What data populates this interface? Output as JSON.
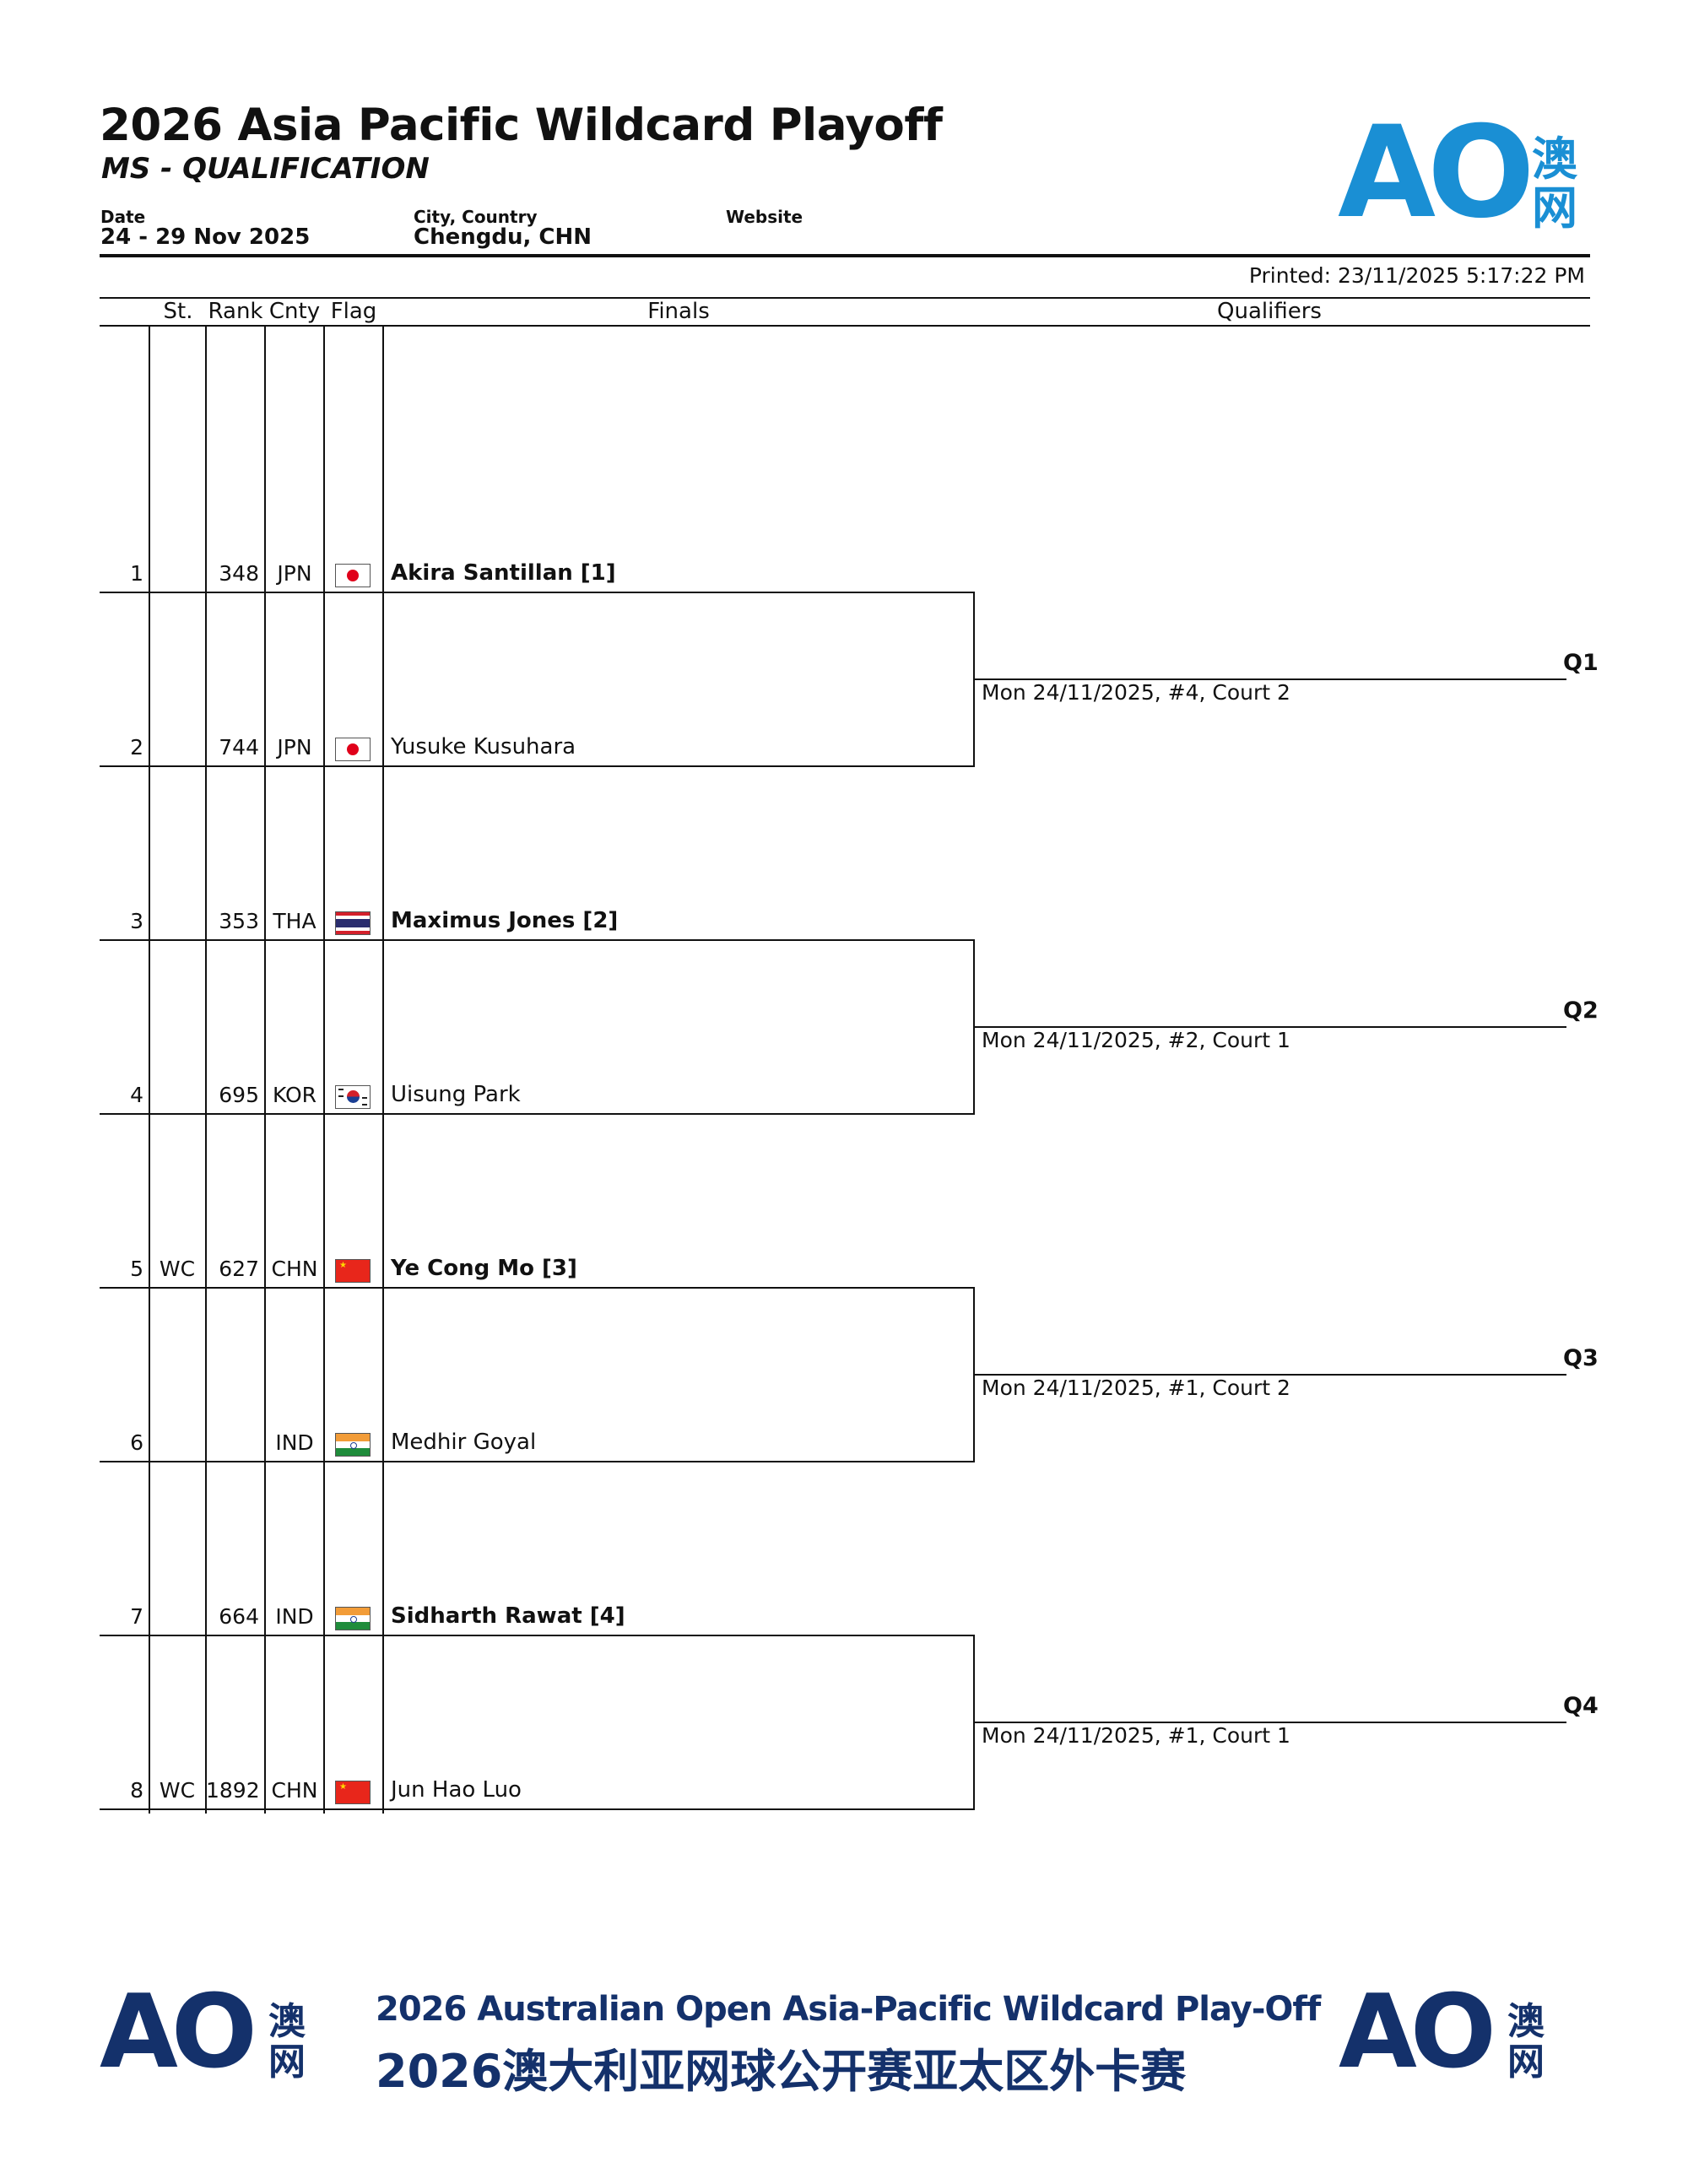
{
  "header": {
    "title": "2026 Asia Pacific Wildcard Playoff",
    "subtitle": "MS - QUALIFICATION",
    "date_label": "Date",
    "date_value": "24 - 29 Nov 2025",
    "city_label": "City, Country",
    "city_value": "Chengdu, CHN",
    "website_label": "Website",
    "logo_text": "AO",
    "logo_cn_1": "澳",
    "logo_cn_2": "网",
    "printed": "Printed: 23/11/2025 5:17:22 PM"
  },
  "columns": {
    "st": "St.",
    "rank": "Rank",
    "cnty": "Cnty",
    "flag": "Flag",
    "finals": "Finals",
    "qualifiers": "Qualifiers"
  },
  "players": [
    {
      "pos": "1",
      "status": "",
      "rank": "348",
      "cnty": "JPN",
      "flag": "japan-flag-icon",
      "name": "Akira Santillan [1]",
      "bold": true
    },
    {
      "pos": "2",
      "status": "",
      "rank": "744",
      "cnty": "JPN",
      "flag": "japan-flag-icon",
      "name": "Yusuke Kusuhara",
      "bold": false
    },
    {
      "pos": "3",
      "status": "",
      "rank": "353",
      "cnty": "THA",
      "flag": "thailand-flag-icon",
      "name": "Maximus Jones [2]",
      "bold": true
    },
    {
      "pos": "4",
      "status": "",
      "rank": "695",
      "cnty": "KOR",
      "flag": "korea-flag-icon",
      "name": "Uisung Park",
      "bold": false
    },
    {
      "pos": "5",
      "status": "WC",
      "rank": "627",
      "cnty": "CHN",
      "flag": "china-flag-icon",
      "name": "Ye Cong Mo [3]",
      "bold": true
    },
    {
      "pos": "6",
      "status": "",
      "rank": "",
      "cnty": "IND",
      "flag": "india-flag-icon",
      "name": "Medhir Goyal",
      "bold": false
    },
    {
      "pos": "7",
      "status": "",
      "rank": "664",
      "cnty": "IND",
      "flag": "india-flag-icon",
      "name": "Sidharth Rawat [4]",
      "bold": true
    },
    {
      "pos": "8",
      "status": "WC",
      "rank": "1892",
      "cnty": "CHN",
      "flag": "china-flag-icon",
      "name": "Jun Hao Luo",
      "bold": false
    }
  ],
  "matches": [
    {
      "schedule": "Mon 24/11/2025, #4, Court 2",
      "qualifier": "Q1"
    },
    {
      "schedule": "Mon 24/11/2025, #2, Court 1",
      "qualifier": "Q2"
    },
    {
      "schedule": "Mon 24/11/2025, #1, Court 2",
      "qualifier": "Q3"
    },
    {
      "schedule": "Mon 24/11/2025, #1, Court 1",
      "qualifier": "Q4"
    }
  ],
  "footer": {
    "logo_text": "AO",
    "logo_cn_1": "澳",
    "logo_cn_2": "网",
    "line_en": "2026 Australian Open Asia-Pacific Wildcard Play-Off",
    "line_cn": "2026澳大利亚网球公开赛亚太区外卡赛"
  },
  "colors": {
    "ao_blue": "#1a8fd4",
    "ao_navy": "#14316b"
  }
}
